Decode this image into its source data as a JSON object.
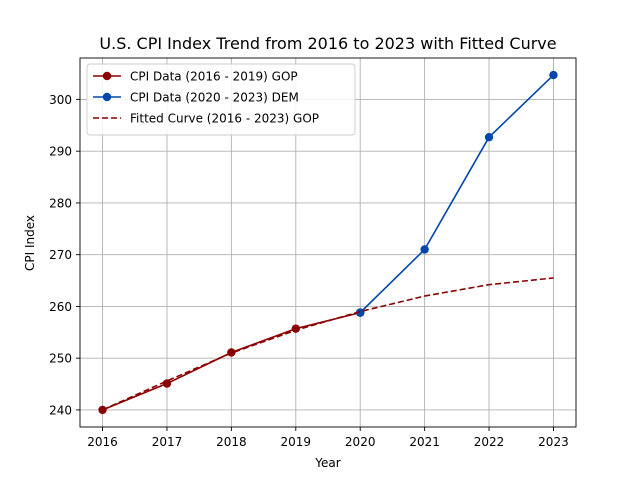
{
  "chart_data": {
    "type": "line",
    "title": "U.S. CPI Index Trend from 2016 to 2023 with Fitted Curve",
    "xlabel": "Year",
    "ylabel": "CPI Index",
    "xlim": [
      2015.65,
      2023.35
    ],
    "ylim": [
      236.7,
      308.0
    ],
    "xticks": [
      2016,
      2017,
      2018,
      2019,
      2020,
      2021,
      2022,
      2023
    ],
    "yticks": [
      240,
      250,
      260,
      270,
      280,
      290,
      300
    ],
    "grid": true,
    "legend_position": "upper-left",
    "series": [
      {
        "name": "CPI Data (2016 - 2019) GOP",
        "style": "solid",
        "marker": "circle",
        "color": "#8b0000",
        "x": [
          2016,
          2017,
          2018,
          2019,
          2020
        ],
        "y": [
          240.0,
          245.1,
          251.1,
          255.7,
          258.8
        ]
      },
      {
        "name": "CPI Data (2020 - 2023) DEM",
        "style": "solid",
        "marker": "circle",
        "color": "#0047ab",
        "x": [
          2020,
          2021,
          2022,
          2023
        ],
        "y": [
          258.8,
          271.0,
          292.7,
          304.7
        ]
      },
      {
        "name": "Fitted Curve (2016 - 2023) GOP",
        "style": "dashed",
        "marker": "none",
        "color": "#8b0000",
        "x": [
          2016,
          2017,
          2018,
          2019,
          2020,
          2021,
          2022,
          2023
        ],
        "y": [
          240.0,
          245.6,
          251.0,
          255.4,
          259.0,
          262.0,
          264.2,
          265.5
        ]
      }
    ]
  }
}
